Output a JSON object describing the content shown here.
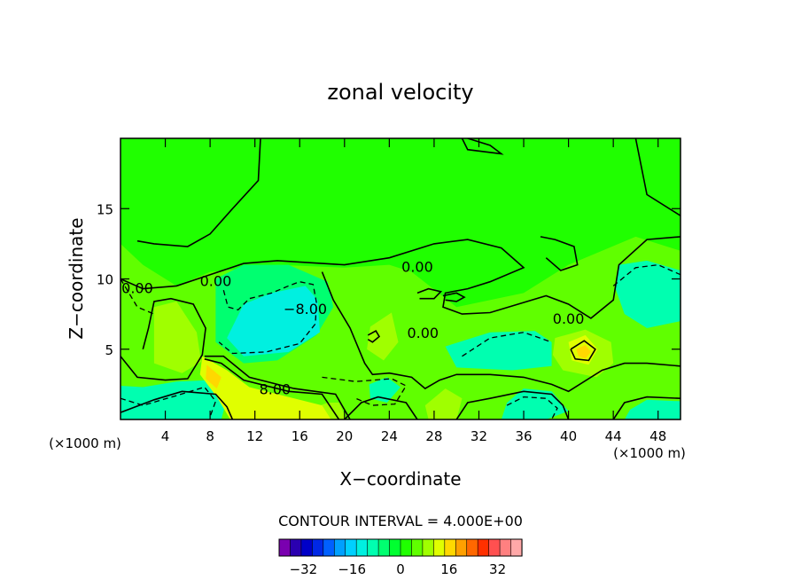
{
  "chart_data": {
    "type": "heatmap",
    "title": "zonal velocity",
    "xlabel": "X−coordinate",
    "ylabel": "Z−coordinate",
    "x_unit_left": "(×1000 m)",
    "x_unit_right": "(×1000 m)",
    "xlim": [
      0,
      50
    ],
    "ylim": [
      0,
      20
    ],
    "x_ticks": [
      4,
      8,
      12,
      16,
      20,
      24,
      28,
      32,
      36,
      40,
      44,
      48
    ],
    "y_ticks": [
      5,
      10,
      15
    ],
    "contour_interval_label": "CONTOUR INTERVAL = 4.000E+00",
    "contour_interval": 4,
    "contour_labels": [
      {
        "text": "0.00",
        "x": 8.5,
        "y": 9.5
      },
      {
        "text": "0.00",
        "x": 1.5,
        "y": 9.0
      },
      {
        "text": "0.00",
        "x": 26.5,
        "y": 10.5
      },
      {
        "text": "0.00",
        "x": 27.0,
        "y": 5.8
      },
      {
        "text": "0.00",
        "x": 40.0,
        "y": 6.8
      },
      {
        "text": "−8.00",
        "x": 16.5,
        "y": 7.5
      },
      {
        "text": "8.00",
        "x": 13.8,
        "y": 1.8
      }
    ],
    "colorbar": {
      "colors": [
        "#7a00b0",
        "#2a00b0",
        "#0000c8",
        "#0028e6",
        "#0060ff",
        "#00a0ff",
        "#00d0ff",
        "#00f0e0",
        "#00ffb0",
        "#00ff70",
        "#00ff30",
        "#20ff00",
        "#60ff00",
        "#a0ff00",
        "#e0ff00",
        "#ffd800",
        "#ffa000",
        "#ff6800",
        "#ff3000",
        "#ff5050",
        "#ff8080",
        "#ffa8a8"
      ],
      "tick_labels": [
        "−32",
        "−16",
        "0",
        "16",
        "32"
      ],
      "tick_values": [
        -32,
        -16,
        0,
        16,
        32
      ],
      "min": -40,
      "max": 40
    },
    "regions": [
      {
        "value": 0,
        "color": "#20ff00",
        "desc": "background"
      },
      {
        "value": 2,
        "color": "#60ff00",
        "path": [
          [
            0,
            0
          ],
          [
            50,
            0
          ],
          [
            50,
            12
          ],
          [
            46,
            13
          ],
          [
            40,
            11
          ],
          [
            36,
            9
          ],
          [
            30,
            8
          ],
          [
            26,
            10.5
          ],
          [
            24,
            11
          ],
          [
            20,
            10.8
          ],
          [
            14,
            11
          ],
          [
            8,
            10.5
          ],
          [
            5,
            9.5
          ],
          [
            2,
            11
          ],
          [
            0,
            12.5
          ]
        ]
      },
      {
        "value": -2,
        "color": "#00ff70",
        "path": [
          [
            8.5,
            10
          ],
          [
            11,
            11
          ],
          [
            15,
            11
          ],
          [
            18.5,
            9.8
          ],
          [
            19,
            8
          ],
          [
            17.5,
            6
          ],
          [
            14,
            4.2
          ],
          [
            11,
            4.0
          ],
          [
            8.5,
            5.5
          ]
        ]
      },
      {
        "value": -6,
        "color": "#00f0e0",
        "path": [
          [
            9.5,
            5.8
          ],
          [
            11,
            8.2
          ],
          [
            13.5,
            9.0
          ],
          [
            16.5,
            9.5
          ],
          [
            17.6,
            8.5
          ],
          [
            17.8,
            6.2
          ],
          [
            15,
            4.8
          ],
          [
            11,
            4.5
          ]
        ]
      },
      {
        "value": -4,
        "color": "#00ffb0",
        "path": [
          [
            44.5,
            11
          ],
          [
            47,
            11.3
          ],
          [
            50,
            10.6
          ],
          [
            50,
            7
          ],
          [
            47,
            6.5
          ],
          [
            45,
            7.5
          ],
          [
            44.2,
            9.3
          ]
        ]
      },
      {
        "value": -4,
        "color": "#00ffb0",
        "path": [
          [
            29,
            5.2
          ],
          [
            33,
            6.2
          ],
          [
            37,
            6.3
          ],
          [
            38.5,
            5.5
          ],
          [
            38.5,
            3.8
          ],
          [
            35,
            3.5
          ],
          [
            30,
            3.7
          ]
        ]
      },
      {
        "value": -4,
        "color": "#00ffb0",
        "path": [
          [
            0,
            0
          ],
          [
            9,
            0
          ],
          [
            9.5,
            1.5
          ],
          [
            8,
            2.8
          ],
          [
            5,
            2.7
          ],
          [
            2,
            2.3
          ],
          [
            0,
            2.4
          ]
        ]
      },
      {
        "value": -4,
        "color": "#00ffb0",
        "path": [
          [
            34,
            0
          ],
          [
            38,
            0
          ],
          [
            40,
            0.6
          ],
          [
            38.5,
            2.0
          ],
          [
            36,
            2.2
          ],
          [
            34.5,
            1.2
          ]
        ]
      },
      {
        "value": -4,
        "color": "#00ffb0",
        "path": [
          [
            45,
            0
          ],
          [
            50,
            0
          ],
          [
            50,
            1.3
          ],
          [
            47,
            1.4
          ],
          [
            45.5,
            0.7
          ]
        ]
      },
      {
        "value": -4,
        "color": "#00ffb0",
        "path": [
          [
            22.2,
            2.5
          ],
          [
            23.8,
            3.0
          ],
          [
            25,
            2.3
          ],
          [
            23.8,
            1.2
          ],
          [
            22.3,
            1.5
          ]
        ]
      },
      {
        "value": 4,
        "color": "#a0ff00",
        "path": [
          [
            3,
            8
          ],
          [
            5,
            8.4
          ],
          [
            6.8,
            6.2
          ],
          [
            7.2,
            4.1
          ],
          [
            5.5,
            3.3
          ],
          [
            3,
            4.0
          ]
        ]
      },
      {
        "value": 4,
        "color": "#a0ff00",
        "path": [
          [
            22.3,
            6.6
          ],
          [
            24.2,
            7.6
          ],
          [
            24.8,
            5.5
          ],
          [
            23.5,
            4.2
          ],
          [
            22.0,
            5.0
          ]
        ]
      },
      {
        "value": 4,
        "color": "#a0ff00",
        "path": [
          [
            16.5,
            0
          ],
          [
            20.2,
            0
          ],
          [
            19.5,
            1.2
          ],
          [
            18.5,
            1.2
          ],
          [
            17.2,
            0.8
          ]
        ]
      },
      {
        "value": 4,
        "color": "#a0ff00",
        "path": [
          [
            27.5,
            0
          ],
          [
            30,
            0
          ],
          [
            30.5,
            1.5
          ],
          [
            29,
            2.2
          ],
          [
            27.2,
            1.0
          ]
        ]
      },
      {
        "value": 4,
        "color": "#a0ff00",
        "path": [
          [
            38.8,
            5.8
          ],
          [
            41.5,
            6.4
          ],
          [
            43.8,
            5.5
          ],
          [
            44,
            4.0
          ],
          [
            42.5,
            3.0
          ],
          [
            39.5,
            3.5
          ],
          [
            38.6,
            4.6
          ]
        ]
      },
      {
        "value": 8,
        "color": "#e0ff00",
        "path": [
          [
            7.3,
            4.5
          ],
          [
            9.5,
            3.5
          ],
          [
            11.5,
            2.3
          ],
          [
            15,
            1.6
          ],
          [
            18,
            1.0
          ],
          [
            18.8,
            0
          ],
          [
            9.8,
            0
          ],
          [
            8.6,
            1.6
          ],
          [
            7.1,
            3.2
          ]
        ]
      },
      {
        "value": 12,
        "color": "#ffd800",
        "path": [
          [
            7.7,
            3.9
          ],
          [
            9.0,
            3.0
          ],
          [
            8.6,
            2.2
          ],
          [
            7.6,
            2.9
          ]
        ]
      },
      {
        "value": 8,
        "color": "#e0ff00",
        "path": [
          [
            40.0,
            5.5
          ],
          [
            41.5,
            6.0
          ],
          [
            42.6,
            5.0
          ],
          [
            41.8,
            3.9
          ],
          [
            40.3,
            4.2
          ]
        ]
      },
      {
        "value": 12,
        "color": "#ffd800",
        "path": [
          [
            40.7,
            5.0
          ],
          [
            41.5,
            5.3
          ],
          [
            42.0,
            4.8
          ],
          [
            41.5,
            4.3
          ],
          [
            40.9,
            4.5
          ]
        ]
      }
    ],
    "solid_contours": [
      [
        [
          0,
          10
        ],
        [
          2,
          9.3
        ],
        [
          5,
          9.5
        ],
        [
          8,
          10.3
        ],
        [
          11,
          11.1
        ],
        [
          14,
          11.3
        ],
        [
          20,
          11
        ],
        [
          24,
          11.5
        ],
        [
          28,
          12.5
        ],
        [
          31,
          12.8
        ],
        [
          34,
          12.2
        ],
        [
          36,
          10.8
        ],
        [
          33,
          9.8
        ],
        [
          31,
          9.3
        ],
        [
          29,
          9.0
        ],
        [
          28.8,
          8.0
        ],
        [
          30.5,
          7.5
        ],
        [
          33,
          7.6
        ],
        [
          38,
          8.8
        ],
        [
          40,
          8.2
        ],
        [
          42,
          7.2
        ],
        [
          44,
          8.5
        ],
        [
          44.5,
          11
        ],
        [
          47,
          12.8
        ],
        [
          50,
          13
        ]
      ],
      [
        [
          12.5,
          20
        ],
        [
          12.3,
          17
        ],
        [
          10,
          15
        ],
        [
          8,
          13.2
        ],
        [
          6,
          12.3
        ],
        [
          3,
          12.5
        ],
        [
          1.5,
          12.7
        ]
      ],
      [
        [
          30.5,
          20
        ],
        [
          31,
          19.2
        ],
        [
          34,
          18.9
        ],
        [
          33,
          19.5
        ],
        [
          31,
          20
        ]
      ],
      [
        [
          46,
          20
        ],
        [
          47,
          16
        ],
        [
          50,
          14.5
        ]
      ],
      [
        [
          37.5,
          13
        ],
        [
          38.8,
          12.8
        ],
        [
          40.5,
          12.3
        ],
        [
          40.8,
          11
        ],
        [
          39.3,
          10.6
        ],
        [
          38,
          11.5
        ]
      ],
      [
        [
          7.5,
          4.3
        ],
        [
          9.0,
          4.0
        ],
        [
          11,
          2.8
        ],
        [
          15,
          2.0
        ],
        [
          18,
          1.8
        ],
        [
          19.5,
          0
        ]
      ],
      [
        [
          7.5,
          4.5
        ],
        [
          9.2,
          4.5
        ],
        [
          11.5,
          3.0
        ],
        [
          15.5,
          2.2
        ],
        [
          19.2,
          1.8
        ],
        [
          20.5,
          0
        ]
      ],
      [
        [
          0,
          4.5
        ],
        [
          1.5,
          3.0
        ],
        [
          4,
          2.8
        ],
        [
          6,
          2.9
        ],
        [
          7.3,
          4.6
        ],
        [
          7.6,
          6.5
        ],
        [
          6.5,
          8.2
        ],
        [
          4.5,
          8.6
        ],
        [
          3,
          8.4
        ],
        [
          2.5,
          6.5
        ],
        [
          2,
          5
        ]
      ],
      [
        [
          18,
          10.5
        ],
        [
          19,
          8.5
        ],
        [
          20.5,
          6.5
        ],
        [
          21.8,
          4.0
        ],
        [
          22.5,
          3.2
        ],
        [
          24,
          3.3
        ],
        [
          26,
          3.0
        ],
        [
          27.2,
          2.2
        ],
        [
          28.5,
          2.8
        ],
        [
          30,
          3.2
        ],
        [
          33,
          3.2
        ],
        [
          36,
          3.0
        ],
        [
          38.5,
          2.5
        ],
        [
          40,
          2.0
        ],
        [
          43,
          3.5
        ],
        [
          45,
          4.0
        ],
        [
          47,
          4.0
        ],
        [
          50,
          3.8
        ]
      ],
      [
        [
          0,
          0.5
        ],
        [
          3,
          1.4
        ],
        [
          5.5,
          2.0
        ],
        [
          8.5,
          1.8
        ],
        [
          9.5,
          0.9
        ],
        [
          10,
          0
        ]
      ],
      [
        [
          20,
          0
        ],
        [
          21.5,
          1.2
        ],
        [
          23,
          1.6
        ],
        [
          25.5,
          1.2
        ],
        [
          26.5,
          0
        ]
      ],
      [
        [
          30,
          0
        ],
        [
          31,
          1.2
        ],
        [
          33,
          1.5
        ],
        [
          36,
          2.0
        ],
        [
          38.5,
          1.8
        ],
        [
          39.5,
          1.0
        ],
        [
          40,
          0
        ]
      ],
      [
        [
          44,
          0
        ],
        [
          45,
          1.2
        ],
        [
          47,
          1.6
        ],
        [
          50,
          1.5
        ]
      ],
      [
        [
          26.5,
          9.0
        ],
        [
          27.5,
          9.3
        ],
        [
          28.6,
          9.1
        ],
        [
          28.0,
          8.6
        ],
        [
          26.7,
          8.6
        ]
      ],
      [
        [
          28.8,
          8.8
        ],
        [
          30,
          9.0
        ],
        [
          30.7,
          8.7
        ],
        [
          30,
          8.4
        ],
        [
          29,
          8.5
        ]
      ],
      [
        [
          22.1,
          6.0
        ],
        [
          22.8,
          6.3
        ],
        [
          23.1,
          5.9
        ],
        [
          22.5,
          5.5
        ],
        [
          22.1,
          5.7
        ]
      ],
      [
        [
          40.2,
          5.0
        ],
        [
          41.4,
          5.6
        ],
        [
          42.4,
          5.0
        ],
        [
          41.8,
          4.2
        ],
        [
          40.6,
          4.3
        ],
        [
          40.2,
          5.0
        ]
      ]
    ],
    "dashed_contours": [
      [
        [
          9.2,
          9.2
        ],
        [
          9.6,
          8.0
        ],
        [
          10.5,
          7.8
        ],
        [
          11.5,
          8.6
        ],
        [
          13.5,
          9.0
        ],
        [
          15,
          9.5
        ],
        [
          16,
          9.8
        ],
        [
          17.2,
          9.6
        ],
        [
          17.5,
          8.3
        ],
        [
          17.4,
          6.8
        ],
        [
          16,
          5.4
        ],
        [
          13,
          4.8
        ],
        [
          10,
          4.7
        ],
        [
          8.8,
          5.5
        ]
      ],
      [
        [
          0,
          10
        ],
        [
          1.5,
          8
        ],
        [
          3,
          7.5
        ]
      ],
      [
        [
          44,
          9.5
        ],
        [
          46,
          10.8
        ],
        [
          48,
          11.0
        ],
        [
          50,
          10.3
        ]
      ],
      [
        [
          18,
          3.0
        ],
        [
          21,
          2.7
        ],
        [
          24.2,
          2.9
        ],
        [
          25.5,
          2.4
        ],
        [
          24.5,
          1.1
        ],
        [
          22.5,
          1.0
        ],
        [
          21,
          1.5
        ]
      ],
      [
        [
          30.5,
          4.5
        ],
        [
          33,
          5.8
        ],
        [
          36,
          6.2
        ],
        [
          38.5,
          5.5
        ]
      ],
      [
        [
          0,
          1.5
        ],
        [
          2,
          1.0
        ],
        [
          5,
          1.7
        ],
        [
          7.5,
          2.3
        ],
        [
          8.5,
          1.3
        ],
        [
          8,
          0.2
        ]
      ],
      [
        [
          34.5,
          1.0
        ],
        [
          36,
          1.6
        ],
        [
          38,
          1.5
        ],
        [
          39,
          0.8
        ],
        [
          38.5,
          0
        ]
      ]
    ]
  }
}
